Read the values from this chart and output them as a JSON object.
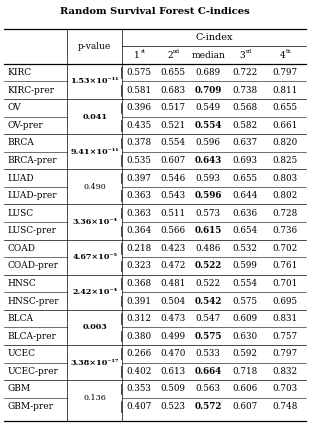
{
  "title": "Random Survival Forest C-indices",
  "rows": [
    {
      "label": "KIRC",
      "pvalue": "1.53×10⁻¹¹",
      "pvalue_bold": true,
      "vals": [
        "0.575",
        "0.655",
        "0.689",
        "0.722",
        "0.797"
      ],
      "bold_val": null
    },
    {
      "label": "KIRC-prer",
      "pvalue": "",
      "pvalue_bold": false,
      "vals": [
        "0.581",
        "0.683",
        "0.709",
        "0.738",
        "0.811"
      ],
      "bold_val": 2
    },
    {
      "label": "OV",
      "pvalue": "0.041",
      "pvalue_bold": true,
      "vals": [
        "0.396",
        "0.517",
        "0.549",
        "0.568",
        "0.655"
      ],
      "bold_val": null
    },
    {
      "label": "OV-prer",
      "pvalue": "",
      "pvalue_bold": false,
      "vals": [
        "0.435",
        "0.521",
        "0.554",
        "0.582",
        "0.661"
      ],
      "bold_val": 2
    },
    {
      "label": "BRCA",
      "pvalue": "9.41×10⁻¹¹",
      "pvalue_bold": true,
      "vals": [
        "0.378",
        "0.554",
        "0.596",
        "0.637",
        "0.820"
      ],
      "bold_val": null
    },
    {
      "label": "BRCA-prer",
      "pvalue": "",
      "pvalue_bold": false,
      "vals": [
        "0.535",
        "0.607",
        "0.643",
        "0.693",
        "0.825"
      ],
      "bold_val": 2
    },
    {
      "label": "LUAD",
      "pvalue": "0.490",
      "pvalue_bold": false,
      "vals": [
        "0.397",
        "0.546",
        "0.593",
        "0.655",
        "0.803"
      ],
      "bold_val": null
    },
    {
      "label": "LUAD-prer",
      "pvalue": "",
      "pvalue_bold": false,
      "vals": [
        "0.363",
        "0.543",
        "0.596",
        "0.644",
        "0.802"
      ],
      "bold_val": 2
    },
    {
      "label": "LUSC",
      "pvalue": "3.36×10⁻⁴",
      "pvalue_bold": true,
      "vals": [
        "0.363",
        "0.511",
        "0.573",
        "0.636",
        "0.728"
      ],
      "bold_val": null
    },
    {
      "label": "LUSC-prer",
      "pvalue": "",
      "pvalue_bold": false,
      "vals": [
        "0.364",
        "0.566",
        "0.615",
        "0.654",
        "0.736"
      ],
      "bold_val": 2
    },
    {
      "label": "COAD",
      "pvalue": "4.67×10⁻⁵",
      "pvalue_bold": true,
      "vals": [
        "0.218",
        "0.423",
        "0.486",
        "0.532",
        "0.702"
      ],
      "bold_val": null
    },
    {
      "label": "COAD-prer",
      "pvalue": "",
      "pvalue_bold": false,
      "vals": [
        "0.323",
        "0.472",
        "0.522",
        "0.599",
        "0.761"
      ],
      "bold_val": 2
    },
    {
      "label": "HNSC",
      "pvalue": "2.42×10⁻⁴",
      "pvalue_bold": true,
      "vals": [
        "0.368",
        "0.481",
        "0.522",
        "0.554",
        "0.701"
      ],
      "bold_val": null
    },
    {
      "label": "HNSC-prer",
      "pvalue": "",
      "pvalue_bold": false,
      "vals": [
        "0.391",
        "0.504",
        "0.542",
        "0.575",
        "0.695"
      ],
      "bold_val": 2
    },
    {
      "label": "BLCA",
      "pvalue": "0.003",
      "pvalue_bold": true,
      "vals": [
        "0.312",
        "0.473",
        "0.547",
        "0.609",
        "0.831"
      ],
      "bold_val": null
    },
    {
      "label": "BLCA-prer",
      "pvalue": "",
      "pvalue_bold": false,
      "vals": [
        "0.380",
        "0.499",
        "0.575",
        "0.630",
        "0.757"
      ],
      "bold_val": 2
    },
    {
      "label": "UCEC",
      "pvalue": "3.38×10⁻¹⁷",
      "pvalue_bold": true,
      "vals": [
        "0.266",
        "0.470",
        "0.533",
        "0.592",
        "0.797"
      ],
      "bold_val": null
    },
    {
      "label": "UCEC-prer",
      "pvalue": "",
      "pvalue_bold": false,
      "vals": [
        "0.402",
        "0.613",
        "0.664",
        "0.718",
        "0.832"
      ],
      "bold_val": 2
    },
    {
      "label": "GBM",
      "pvalue": "0.136",
      "pvalue_bold": false,
      "vals": [
        "0.353",
        "0.509",
        "0.563",
        "0.606",
        "0.703"
      ],
      "bold_val": null
    },
    {
      "label": "GBM-prer",
      "pvalue": "",
      "pvalue_bold": false,
      "vals": [
        "0.407",
        "0.523",
        "0.572",
        "0.607",
        "0.748"
      ],
      "bold_val": 2
    }
  ],
  "background_color": "#ffffff"
}
